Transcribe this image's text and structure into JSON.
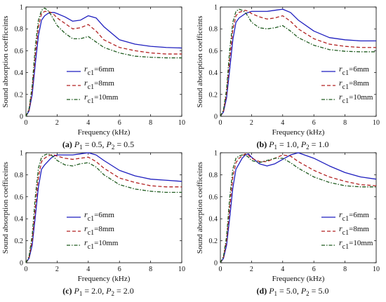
{
  "colors": {
    "6mm": "#1f1fbf",
    "8mm": "#b22222",
    "10mm": "#1e5a1e",
    "axis": "#000000"
  },
  "line_styles": {
    "6mm": "solid",
    "8mm": "dashed",
    "10mm": "dash-dot"
  },
  "legend": {
    "symbol": "r",
    "subscript": "c1",
    "entries": [
      "=6mm",
      "=8mm",
      "=10mm"
    ]
  },
  "chart_data": [
    {
      "type": "line",
      "caption": {
        "label": "(a)",
        "p1_sym": "P",
        "p1_sub": "1",
        "p1_val": " = 0.5, ",
        "p2_sym": "P",
        "p2_sub": "2",
        "p2_val": " = 0.5"
      },
      "xlabel": "Frequency (kHz)",
      "ylabel": "Sound absorption coefficeints",
      "xlim": [
        0,
        10
      ],
      "ylim": [
        0,
        1
      ],
      "xticks": [
        0,
        2,
        4,
        6,
        8,
        10
      ],
      "yticks": [
        0,
        0.2,
        0.4,
        0.6,
        0.8,
        1
      ],
      "xtick_labels": [
        "0",
        "2",
        "4",
        "6",
        "8",
        "10"
      ],
      "ytick_labels": [
        "0",
        "0.2",
        "0.4",
        "0.6",
        "0.8",
        "1"
      ],
      "legend_position": "center-left",
      "x": [
        0,
        0.2,
        0.4,
        0.6,
        0.8,
        1.0,
        1.2,
        1.4,
        1.6,
        1.8,
        2.0,
        2.5,
        3.0,
        3.5,
        4.0,
        4.5,
        5.0,
        6.0,
        7.0,
        8.0,
        9.0,
        10.0
      ],
      "series": [
        {
          "name": "6mm",
          "values": [
            0,
            0.05,
            0.2,
            0.48,
            0.74,
            0.88,
            0.92,
            0.94,
            0.95,
            0.95,
            0.94,
            0.91,
            0.87,
            0.88,
            0.92,
            0.9,
            0.82,
            0.7,
            0.66,
            0.64,
            0.63,
            0.625
          ]
        },
        {
          "name": "8mm",
          "values": [
            0,
            0.06,
            0.24,
            0.56,
            0.82,
            0.94,
            0.96,
            0.96,
            0.95,
            0.93,
            0.9,
            0.85,
            0.8,
            0.81,
            0.84,
            0.78,
            0.7,
            0.63,
            0.6,
            0.58,
            0.57,
            0.57
          ]
        },
        {
          "name": "10mm",
          "values": [
            0,
            0.07,
            0.28,
            0.64,
            0.88,
            0.97,
            0.99,
            0.97,
            0.93,
            0.88,
            0.83,
            0.76,
            0.71,
            0.71,
            0.73,
            0.68,
            0.63,
            0.58,
            0.55,
            0.54,
            0.535,
            0.535
          ]
        }
      ]
    },
    {
      "type": "line",
      "caption": {
        "label": "(b)",
        "p1_sym": "P",
        "p1_sub": "1",
        "p1_val": " = 1.0, ",
        "p2_sym": "P",
        "p2_sub": "2",
        "p2_val": " = 1.0"
      },
      "xlabel": "Frequency (kHz)",
      "ylabel": "Sound absorption coefficeints",
      "xlim": [
        0,
        10
      ],
      "ylim": [
        0,
        1
      ],
      "xticks": [
        0,
        2,
        4,
        6,
        8,
        10
      ],
      "yticks": [
        0,
        0.2,
        0.4,
        0.6,
        0.8,
        1
      ],
      "xtick_labels": [
        "0",
        "2",
        "4",
        "6",
        "8",
        "10"
      ],
      "ytick_labels": [
        "0",
        "0.2",
        "0.4",
        "0.6",
        "0.8",
        "1"
      ],
      "legend_position": "center-right",
      "x": [
        0,
        0.2,
        0.4,
        0.6,
        0.8,
        1.0,
        1.2,
        1.4,
        1.6,
        1.8,
        2.0,
        2.5,
        3.0,
        3.5,
        4.0,
        4.5,
        5.0,
        6.0,
        7.0,
        8.0,
        9.0,
        10.0
      ],
      "series": [
        {
          "name": "6mm",
          "values": [
            0,
            0.04,
            0.17,
            0.43,
            0.7,
            0.86,
            0.9,
            0.92,
            0.94,
            0.95,
            0.96,
            0.96,
            0.96,
            0.97,
            0.98,
            0.95,
            0.88,
            0.78,
            0.72,
            0.7,
            0.69,
            0.69
          ]
        },
        {
          "name": "8mm",
          "values": [
            0,
            0.05,
            0.21,
            0.52,
            0.79,
            0.92,
            0.95,
            0.96,
            0.97,
            0.96,
            0.94,
            0.91,
            0.89,
            0.9,
            0.92,
            0.87,
            0.8,
            0.71,
            0.66,
            0.64,
            0.63,
            0.63
          ]
        },
        {
          "name": "10mm",
          "values": [
            0,
            0.06,
            0.25,
            0.61,
            0.86,
            0.96,
            0.98,
            0.97,
            0.95,
            0.91,
            0.86,
            0.81,
            0.8,
            0.81,
            0.83,
            0.78,
            0.72,
            0.65,
            0.61,
            0.595,
            0.59,
            0.59
          ]
        }
      ]
    },
    {
      "type": "line",
      "caption": {
        "label": "(c)",
        "p1_sym": "P",
        "p1_sub": "1",
        "p1_val": " = 2.0, ",
        "p2_sym": "P",
        "p2_sub": "2",
        "p2_val": " = 2.0"
      },
      "xlabel": "Frequency (kHz)",
      "ylabel": "Sound absorption coefficeints",
      "xlim": [
        0,
        10
      ],
      "ylim": [
        0,
        1
      ],
      "xticks": [
        0,
        2,
        4,
        6,
        8,
        10
      ],
      "yticks": [
        0,
        0.2,
        0.4,
        0.6,
        0.8,
        1
      ],
      "xtick_labels": [
        "0",
        "2",
        "4",
        "6",
        "8",
        "10"
      ],
      "ytick_labels": [
        "0",
        "0.2",
        "0.4",
        "0.6",
        "0.8",
        "1"
      ],
      "legend_position": "center-left",
      "x": [
        0,
        0.2,
        0.4,
        0.6,
        0.8,
        1.0,
        1.2,
        1.4,
        1.6,
        1.8,
        2.0,
        2.5,
        3.0,
        3.5,
        4.0,
        4.5,
        5.0,
        6.0,
        7.0,
        8.0,
        9.0,
        10.0
      ],
      "series": [
        {
          "name": "6mm",
          "values": [
            0,
            0.04,
            0.16,
            0.42,
            0.69,
            0.85,
            0.89,
            0.92,
            0.95,
            0.97,
            0.98,
            0.98,
            0.98,
            0.99,
            1.0,
            0.98,
            0.93,
            0.84,
            0.79,
            0.76,
            0.75,
            0.74
          ]
        },
        {
          "name": "8mm",
          "values": [
            0,
            0.05,
            0.2,
            0.5,
            0.78,
            0.92,
            0.95,
            0.97,
            0.98,
            0.98,
            0.97,
            0.95,
            0.94,
            0.95,
            0.96,
            0.92,
            0.86,
            0.77,
            0.73,
            0.7,
            0.69,
            0.69
          ]
        },
        {
          "name": "10mm",
          "values": [
            0,
            0.06,
            0.25,
            0.6,
            0.86,
            0.96,
            0.98,
            0.99,
            0.98,
            0.96,
            0.93,
            0.89,
            0.88,
            0.9,
            0.91,
            0.87,
            0.8,
            0.71,
            0.67,
            0.65,
            0.64,
            0.64
          ]
        }
      ]
    },
    {
      "type": "line",
      "caption": {
        "label": "(d)",
        "p1_sym": "P",
        "p1_sub": "1",
        "p1_val": " = 5.0, ",
        "p2_sym": "P",
        "p2_sub": "2",
        "p2_val": " = 5.0"
      },
      "xlabel": "Frequency (kHz)",
      "ylabel": "Sound absorption coefficeints",
      "xlim": [
        0,
        10
      ],
      "ylim": [
        0,
        1
      ],
      "xticks": [
        0,
        2,
        4,
        6,
        8,
        10
      ],
      "yticks": [
        0,
        0.2,
        0.4,
        0.6,
        0.8,
        1
      ],
      "xtick_labels": [
        "0",
        "2",
        "4",
        "6",
        "8",
        "10"
      ],
      "ytick_labels": [
        "0",
        "0.2",
        "0.4",
        "0.6",
        "0.8",
        "1"
      ],
      "legend_position": "center-right",
      "x": [
        0,
        0.2,
        0.4,
        0.6,
        0.8,
        1.0,
        1.2,
        1.4,
        1.6,
        1.8,
        2.0,
        2.5,
        3.0,
        3.5,
        4.0,
        4.5,
        5.0,
        6.0,
        7.0,
        8.0,
        9.0,
        10.0
      ],
      "series": [
        {
          "name": "6mm",
          "values": [
            0,
            0.04,
            0.16,
            0.41,
            0.68,
            0.85,
            0.9,
            0.95,
            0.98,
            0.99,
            0.96,
            0.9,
            0.88,
            0.9,
            0.94,
            0.98,
            1.0,
            0.95,
            0.88,
            0.82,
            0.78,
            0.76
          ]
        },
        {
          "name": "8mm",
          "values": [
            0,
            0.05,
            0.2,
            0.5,
            0.78,
            0.91,
            0.95,
            0.97,
            0.99,
            0.98,
            0.95,
            0.92,
            0.92,
            0.95,
            0.98,
            0.97,
            0.92,
            0.84,
            0.78,
            0.74,
            0.71,
            0.7
          ]
        },
        {
          "name": "10mm",
          "values": [
            0,
            0.06,
            0.24,
            0.59,
            0.85,
            0.95,
            0.97,
            0.98,
            0.98,
            0.96,
            0.93,
            0.91,
            0.93,
            0.95,
            0.95,
            0.91,
            0.86,
            0.78,
            0.73,
            0.7,
            0.69,
            0.69
          ]
        }
      ]
    }
  ]
}
